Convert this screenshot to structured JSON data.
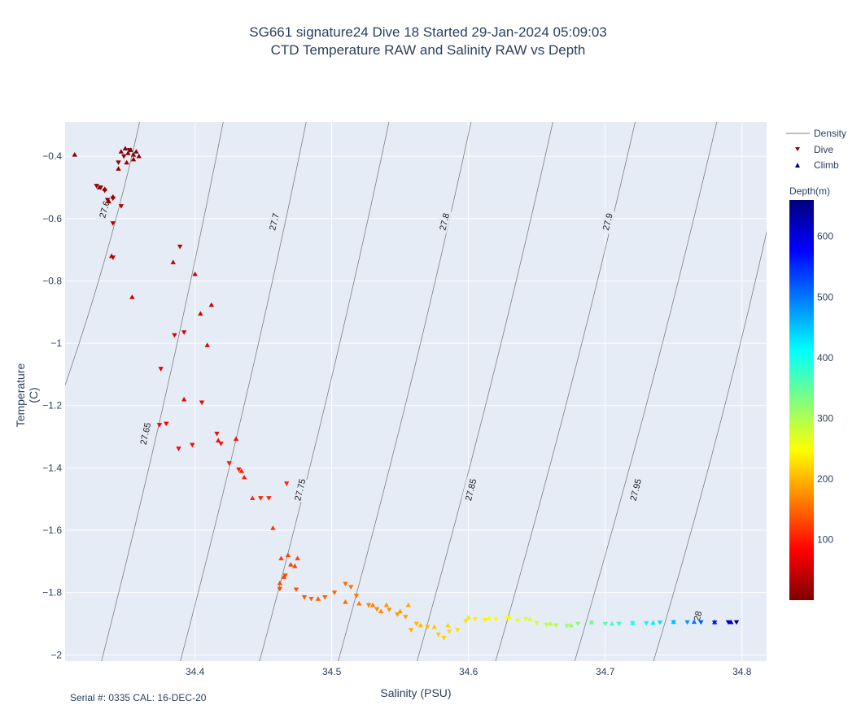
{
  "chart_data": {
    "type": "scatter",
    "title": "SG661 signature24 Dive 18 Started 29-Jan-2024 05:09:03",
    "subtitle": "CTD Temperature RAW and Salinity RAW vs Depth",
    "xlabel": "Salinity (PSU)",
    "ylabel": "Temperature (C)",
    "xlim": [
      34.305,
      34.818
    ],
    "ylim": [
      -2.02,
      -0.29
    ],
    "xticks": [
      "34.4",
      "34.5",
      "34.6",
      "34.7",
      "34.8"
    ],
    "xtick_values": [
      34.4,
      34.5,
      34.6,
      34.7,
      34.8
    ],
    "yticks": [
      "−0.4",
      "−0.6",
      "−0.8",
      "−1",
      "−1.2",
      "−1.4",
      "−1.6",
      "−1.8",
      "−2"
    ],
    "ytick_values": [
      -0.4,
      -0.6,
      -0.8,
      -1.0,
      -1.2,
      -1.4,
      -1.6,
      -1.8,
      -2.0
    ],
    "grid": true,
    "legend_position": "top-right",
    "legend": [
      "Density",
      "Dive",
      "Climb"
    ],
    "colorbar": {
      "title": "Depth(m)",
      "range": [
        0,
        660
      ],
      "ticks": [
        "100",
        "200",
        "300",
        "400",
        "500",
        "600"
      ],
      "tick_values": [
        100,
        200,
        300,
        400,
        500,
        600
      ],
      "colorscale": "jet-reversed"
    },
    "density_contours": [
      {
        "label": "27.6",
        "points": [
          [
            34.3595,
            -0.29
          ],
          [
            34.3051,
            -1.1336
          ]
        ],
        "label_at": [
          34.3336,
          -0.57
        ]
      },
      {
        "label": "27.65",
        "points": [
          [
            34.4206,
            -0.29
          ],
          [
            34.3316,
            -2.02
          ]
        ],
        "label_at": [
          34.3636,
          -1.29
        ]
      },
      {
        "label": "27.7",
        "points": [
          [
            34.4813,
            -0.29
          ],
          [
            34.3893,
            -2.02
          ]
        ],
        "label_at": [
          34.4577,
          -0.61
        ]
      },
      {
        "label": "27.75",
        "points": [
          [
            34.5418,
            -0.29
          ],
          [
            34.4472,
            -2.02
          ]
        ],
        "label_at": [
          34.4766,
          -1.47
        ]
      },
      {
        "label": "27.8",
        "points": [
          [
            34.6019,
            -0.29
          ],
          [
            34.5047,
            -2.02
          ]
        ],
        "label_at": [
          34.5822,
          -0.61
        ]
      },
      {
        "label": "27.85",
        "points": [
          [
            34.6617,
            -0.29
          ],
          [
            34.5624,
            -2.02
          ]
        ],
        "label_at": [
          34.6015,
          -1.47
        ]
      },
      {
        "label": "27.9",
        "points": [
          [
            34.7219,
            -0.29
          ],
          [
            34.6198,
            -2.02
          ]
        ],
        "label_at": [
          34.7016,
          -0.61
        ]
      },
      {
        "label": "27.95",
        "points": [
          [
            34.7816,
            -0.29
          ],
          [
            34.6777,
            -2.02
          ]
        ],
        "label_at": [
          34.7221,
          -1.47
        ]
      },
      {
        "label": "28",
        "points": [
          [
            34.8182,
            -0.64
          ],
          [
            34.7353,
            -2.02
          ]
        ],
        "label_at": [
          34.7675,
          -1.875
        ]
      }
    ],
    "series": [
      {
        "name": "Dive",
        "marker": "triangle-down",
        "points": [
          {
            "x": 34.328,
            "y": -0.495,
            "depth": 12
          },
          {
            "x": 34.331,
            "y": -0.5,
            "depth": 14
          },
          {
            "x": 34.334,
            "y": -0.51,
            "depth": 16
          },
          {
            "x": 34.336,
            "y": -0.54,
            "depth": 18
          },
          {
            "x": 34.34,
            "y": -0.535,
            "depth": 20
          },
          {
            "x": 34.344,
            "y": -0.42,
            "depth": 10
          },
          {
            "x": 34.348,
            "y": -0.4,
            "depth": 8
          },
          {
            "x": 34.352,
            "y": -0.38,
            "depth": 6
          },
          {
            "x": 34.346,
            "y": -0.56,
            "depth": 28
          },
          {
            "x": 34.34,
            "y": -0.615,
            "depth": 35
          },
          {
            "x": 34.34,
            "y": -0.725,
            "depth": 48
          },
          {
            "x": 34.389,
            "y": -0.69,
            "depth": 42
          },
          {
            "x": 34.385,
            "y": -0.974,
            "depth": 60
          },
          {
            "x": 34.375,
            "y": -1.082,
            "depth": 68
          },
          {
            "x": 34.374,
            "y": -1.262,
            "depth": 80
          },
          {
            "x": 34.379,
            "y": -1.258,
            "depth": 78
          },
          {
            "x": 34.388,
            "y": -1.338,
            "depth": 85
          },
          {
            "x": 34.392,
            "y": -0.965,
            "depth": 58
          },
          {
            "x": 34.398,
            "y": -1.326,
            "depth": 88
          },
          {
            "x": 34.405,
            "y": -1.19,
            "depth": 75
          },
          {
            "x": 34.419,
            "y": -1.322,
            "depth": 90
          },
          {
            "x": 34.416,
            "y": -1.29,
            "depth": 86
          },
          {
            "x": 34.425,
            "y": -1.385,
            "depth": 95
          },
          {
            "x": 34.432,
            "y": -1.405,
            "depth": 98
          },
          {
            "x": 34.448,
            "y": -1.497,
            "depth": 106
          },
          {
            "x": 34.454,
            "y": -1.497,
            "depth": 108
          },
          {
            "x": 34.467,
            "y": -1.45,
            "depth": 104
          },
          {
            "x": 34.462,
            "y": -1.788,
            "depth": 130
          },
          {
            "x": 34.466,
            "y": -1.745,
            "depth": 128
          },
          {
            "x": 34.474,
            "y": -1.79,
            "depth": 134
          },
          {
            "x": 34.48,
            "y": -1.815,
            "depth": 140
          },
          {
            "x": 34.485,
            "y": -1.82,
            "depth": 144
          },
          {
            "x": 34.495,
            "y": -1.815,
            "depth": 148
          },
          {
            "x": 34.502,
            "y": -1.8,
            "depth": 150
          },
          {
            "x": 34.51,
            "y": -1.772,
            "depth": 152
          },
          {
            "x": 34.514,
            "y": -1.782,
            "depth": 154
          },
          {
            "x": 34.518,
            "y": -1.81,
            "depth": 158
          },
          {
            "x": 34.527,
            "y": -1.84,
            "depth": 166
          },
          {
            "x": 34.533,
            "y": -1.853,
            "depth": 172
          },
          {
            "x": 34.542,
            "y": -1.855,
            "depth": 178
          },
          {
            "x": 34.548,
            "y": -1.87,
            "depth": 182
          },
          {
            "x": 34.554,
            "y": -1.878,
            "depth": 188
          },
          {
            "x": 34.558,
            "y": -1.92,
            "depth": 196
          },
          {
            "x": 34.562,
            "y": -1.9,
            "depth": 200
          },
          {
            "x": 34.57,
            "y": -1.91,
            "depth": 206
          },
          {
            "x": 34.578,
            "y": -1.935,
            "depth": 214
          },
          {
            "x": 34.582,
            "y": -1.945,
            "depth": 218
          },
          {
            "x": 34.586,
            "y": -1.925,
            "depth": 222
          },
          {
            "x": 34.592,
            "y": -1.92,
            "depth": 226
          },
          {
            "x": 34.598,
            "y": -1.892,
            "depth": 230
          },
          {
            "x": 34.605,
            "y": -1.885,
            "depth": 235
          },
          {
            "x": 34.612,
            "y": -1.888,
            "depth": 240
          },
          {
            "x": 34.62,
            "y": -1.885,
            "depth": 246
          },
          {
            "x": 34.628,
            "y": -1.882,
            "depth": 252
          },
          {
            "x": 34.636,
            "y": -1.89,
            "depth": 260
          },
          {
            "x": 34.642,
            "y": -1.885,
            "depth": 268
          },
          {
            "x": 34.65,
            "y": -1.898,
            "depth": 278
          },
          {
            "x": 34.657,
            "y": -1.903,
            "depth": 288
          },
          {
            "x": 34.664,
            "y": -1.905,
            "depth": 298
          },
          {
            "x": 34.672,
            "y": -1.907,
            "depth": 310
          },
          {
            "x": 34.68,
            "y": -1.9,
            "depth": 322
          },
          {
            "x": 34.69,
            "y": -1.897,
            "depth": 340
          },
          {
            "x": 34.7,
            "y": -1.9,
            "depth": 360
          },
          {
            "x": 34.71,
            "y": -1.9,
            "depth": 378
          },
          {
            "x": 34.72,
            "y": -1.898,
            "depth": 395
          },
          {
            "x": 34.73,
            "y": -1.898,
            "depth": 412
          },
          {
            "x": 34.74,
            "y": -1.896,
            "depth": 432
          },
          {
            "x": 34.75,
            "y": -1.895,
            "depth": 452
          },
          {
            "x": 34.76,
            "y": -1.895,
            "depth": 480
          },
          {
            "x": 34.77,
            "y": -1.895,
            "depth": 520
          },
          {
            "x": 34.78,
            "y": -1.896,
            "depth": 560
          },
          {
            "x": 34.79,
            "y": -1.895,
            "depth": 610
          },
          {
            "x": 34.796,
            "y": -1.895,
            "depth": 650
          }
        ]
      },
      {
        "name": "Climb",
        "marker": "triangle-up",
        "points": [
          {
            "x": 34.312,
            "y": -0.395,
            "depth": 5
          },
          {
            "x": 34.346,
            "y": -0.385,
            "depth": 6
          },
          {
            "x": 34.349,
            "y": -0.375,
            "depth": 5
          },
          {
            "x": 34.351,
            "y": -0.39,
            "depth": 7
          },
          {
            "x": 34.353,
            "y": -0.38,
            "depth": 6
          },
          {
            "x": 34.355,
            "y": -0.395,
            "depth": 8
          },
          {
            "x": 34.357,
            "y": -0.385,
            "depth": 7
          },
          {
            "x": 34.359,
            "y": -0.4,
            "depth": 9
          },
          {
            "x": 34.355,
            "y": -0.41,
            "depth": 10
          },
          {
            "x": 34.35,
            "y": -0.42,
            "depth": 11
          },
          {
            "x": 34.344,
            "y": -0.44,
            "depth": 12
          },
          {
            "x": 34.334,
            "y": -0.505,
            "depth": 15
          },
          {
            "x": 34.33,
            "y": -0.5,
            "depth": 13
          },
          {
            "x": 34.337,
            "y": -0.545,
            "depth": 20
          },
          {
            "x": 34.34,
            "y": -0.53,
            "depth": 18
          },
          {
            "x": 34.339,
            "y": -0.72,
            "depth": 40
          },
          {
            "x": 34.354,
            "y": -0.852,
            "depth": 50
          },
          {
            "x": 34.384,
            "y": -0.74,
            "depth": 45
          },
          {
            "x": 34.4,
            "y": -0.778,
            "depth": 48
          },
          {
            "x": 34.404,
            "y": -0.905,
            "depth": 55
          },
          {
            "x": 34.412,
            "y": -0.877,
            "depth": 53
          },
          {
            "x": 34.409,
            "y": -1.006,
            "depth": 62
          },
          {
            "x": 34.392,
            "y": -1.18,
            "depth": 74
          },
          {
            "x": 34.417,
            "y": -1.312,
            "depth": 88
          },
          {
            "x": 34.43,
            "y": -1.307,
            "depth": 90
          },
          {
            "x": 34.434,
            "y": -1.41,
            "depth": 100
          },
          {
            "x": 34.436,
            "y": -1.43,
            "depth": 102
          },
          {
            "x": 34.442,
            "y": -1.497,
            "depth": 108
          },
          {
            "x": 34.457,
            "y": -1.593,
            "depth": 114
          },
          {
            "x": 34.463,
            "y": -1.69,
            "depth": 122
          },
          {
            "x": 34.468,
            "y": -1.68,
            "depth": 124
          },
          {
            "x": 34.47,
            "y": -1.71,
            "depth": 126
          },
          {
            "x": 34.475,
            "y": -1.69,
            "depth": 124
          },
          {
            "x": 34.473,
            "y": -1.715,
            "depth": 127
          },
          {
            "x": 34.465,
            "y": -1.75,
            "depth": 128
          },
          {
            "x": 34.462,
            "y": -1.77,
            "depth": 130
          },
          {
            "x": 34.49,
            "y": -1.82,
            "depth": 146
          },
          {
            "x": 34.51,
            "y": -1.83,
            "depth": 152
          },
          {
            "x": 34.52,
            "y": -1.835,
            "depth": 158
          },
          {
            "x": 34.53,
            "y": -1.84,
            "depth": 166
          },
          {
            "x": 34.536,
            "y": -1.86,
            "depth": 172
          },
          {
            "x": 34.54,
            "y": -1.84,
            "depth": 176
          },
          {
            "x": 34.55,
            "y": -1.86,
            "depth": 184
          },
          {
            "x": 34.556,
            "y": -1.84,
            "depth": 190
          },
          {
            "x": 34.565,
            "y": -1.905,
            "depth": 202
          },
          {
            "x": 34.575,
            "y": -1.91,
            "depth": 210
          },
          {
            "x": 34.585,
            "y": -1.905,
            "depth": 220
          },
          {
            "x": 34.6,
            "y": -1.88,
            "depth": 232
          },
          {
            "x": 34.615,
            "y": -1.882,
            "depth": 243
          },
          {
            "x": 34.63,
            "y": -1.878,
            "depth": 255
          },
          {
            "x": 34.645,
            "y": -1.885,
            "depth": 272
          },
          {
            "x": 34.66,
            "y": -1.9,
            "depth": 292
          },
          {
            "x": 34.675,
            "y": -1.905,
            "depth": 315
          },
          {
            "x": 34.69,
            "y": -1.895,
            "depth": 340
          },
          {
            "x": 34.705,
            "y": -1.9,
            "depth": 368
          },
          {
            "x": 34.72,
            "y": -1.898,
            "depth": 395
          },
          {
            "x": 34.735,
            "y": -1.897,
            "depth": 422
          },
          {
            "x": 34.75,
            "y": -1.894,
            "depth": 452
          },
          {
            "x": 34.765,
            "y": -1.894,
            "depth": 500
          },
          {
            "x": 34.78,
            "y": -1.895,
            "depth": 560
          },
          {
            "x": 34.792,
            "y": -1.895,
            "depth": 630
          }
        ]
      }
    ]
  },
  "footer": "Serial #: 0335  CAL: 16-DEC-20",
  "colors": {
    "plot_bg": "#e5ecf6",
    "grid": "#ffffff",
    "contour": "#7f7f7f",
    "text": "#2a3f5f"
  }
}
